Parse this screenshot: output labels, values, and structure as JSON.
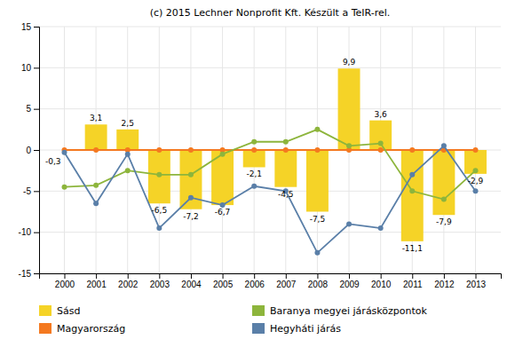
{
  "chart_data": {
    "type": "bar",
    "title": "(c) 2015 Lechner Nonprofit Kft. Készült a TeIR-rel.",
    "x": [
      2000,
      2001,
      2002,
      2003,
      2004,
      2005,
      2006,
      2007,
      2008,
      2009,
      2010,
      2011,
      2012,
      2013
    ],
    "xlim": [
      1999.2,
      2013.8
    ],
    "xticks": [
      2000,
      2001,
      2002,
      2003,
      2004,
      2005,
      2006,
      2007,
      2008,
      2009,
      2010,
      2011,
      2012,
      2013
    ],
    "ylim": [
      -15,
      15
    ],
    "yticks": [
      -15,
      -10,
      -5,
      0,
      5,
      10,
      15
    ],
    "grid": true,
    "data_labels": true,
    "series": [
      {
        "name": "Sásd",
        "type": "bar",
        "color": "#f5d327",
        "values": [
          null,
          3.1,
          2.5,
          -6.5,
          -7.2,
          -6.7,
          -2.1,
          -4.5,
          -7.5,
          9.9,
          3.6,
          -11.1,
          -7.9,
          -2.9
        ],
        "value_labels": [
          null,
          "3,1",
          "2,5",
          "-6,5",
          "-7,2",
          "-6,7",
          "-2,1",
          "-4,5",
          "-7,5",
          "9,9",
          "3,6",
          "-11,1",
          "-7,9",
          "-2,9"
        ]
      },
      {
        "name": "Magyarország",
        "type": "line",
        "marker": "circle",
        "color": "#f47920",
        "values": [
          0.0,
          0.0,
          0.0,
          0.0,
          0.0,
          0.0,
          0.0,
          0.0,
          0.0,
          0.0,
          0.0,
          0.0,
          0.0,
          0.0
        ]
      },
      {
        "name": "Baranya megyei járásközpontok",
        "type": "line",
        "marker": "circle",
        "color": "#8db53c",
        "values": [
          -4.5,
          -4.3,
          -2.5,
          -3.0,
          -3.0,
          -0.5,
          1.0,
          1.0,
          2.5,
          0.5,
          0.8,
          -5.0,
          -6.0,
          -2.5
        ]
      },
      {
        "name": "Hegyháti járás",
        "type": "line",
        "marker": "circle",
        "color": "#5a7fa8",
        "values": [
          -0.3,
          -6.5,
          -0.5,
          -9.5,
          -5.8,
          -6.7,
          -4.4,
          -5.0,
          -12.5,
          -9.0,
          -9.5,
          -3.0,
          0.5,
          -5.0
        ],
        "value_labels": [
          "-0,3",
          null,
          null,
          null,
          null,
          null,
          null,
          null,
          null,
          null,
          null,
          null,
          null,
          null
        ]
      }
    ]
  }
}
